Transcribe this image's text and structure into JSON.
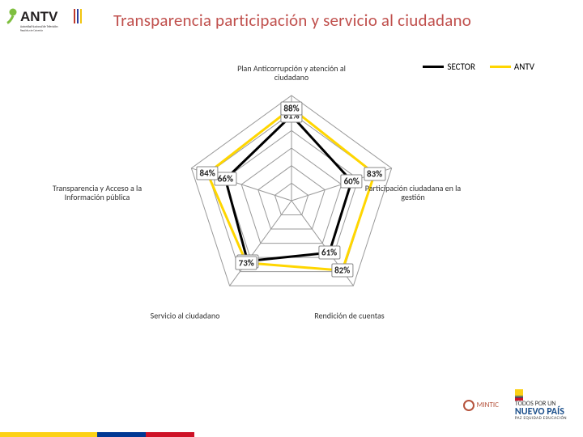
{
  "title": "Transparencia participación y servicio al ciudadano",
  "chart": {
    "type": "radar",
    "axes": [
      {
        "label": "Plan Anticorrupción y atención al\nciudadano"
      },
      {
        "label": "Participación ciudadana en la gestión"
      },
      {
        "label": "Rendición de cuentas"
      },
      {
        "label": "Servicio al ciudadano"
      },
      {
        "label": "Transparencia y Acceso a la\nInformación pública"
      }
    ],
    "series": [
      {
        "name": "SECTOR",
        "color": "#000000",
        "width": 3,
        "values": [
          81,
          60,
          61,
          71,
          66
        ]
      },
      {
        "name": "ANTV",
        "color": "#ffd600",
        "width": 3,
        "values": [
          88,
          83,
          82,
          73,
          84
        ]
      }
    ],
    "value_labels": [
      "81%",
      "88%",
      "60%",
      "83%",
      "61%",
      "82%",
      "71%",
      "73%",
      "66%",
      "84%"
    ],
    "grid_levels": 6,
    "radius_max": 100,
    "grid_color": "#9a9a9a",
    "axis_color": "#9a9a9a",
    "background_color": "#ffffff",
    "label_fontsize": 10,
    "value_fontsize": 11
  },
  "legend": {
    "s1": "SECTOR",
    "s2": "ANTV"
  },
  "footer": {
    "mintic": "MINTIC",
    "nc1": "TODOS POR UN",
    "nc2": "NUEVO PAÍS",
    "nc3": "PAZ  EQUIDAD  EDUCACIÓN"
  },
  "stripe": [
    "#fcd116",
    "#003893",
    "#ce1126",
    "#ffffff",
    "#ffffff"
  ],
  "stripe_widths": [
    120,
    60,
    60,
    0,
    480
  ]
}
